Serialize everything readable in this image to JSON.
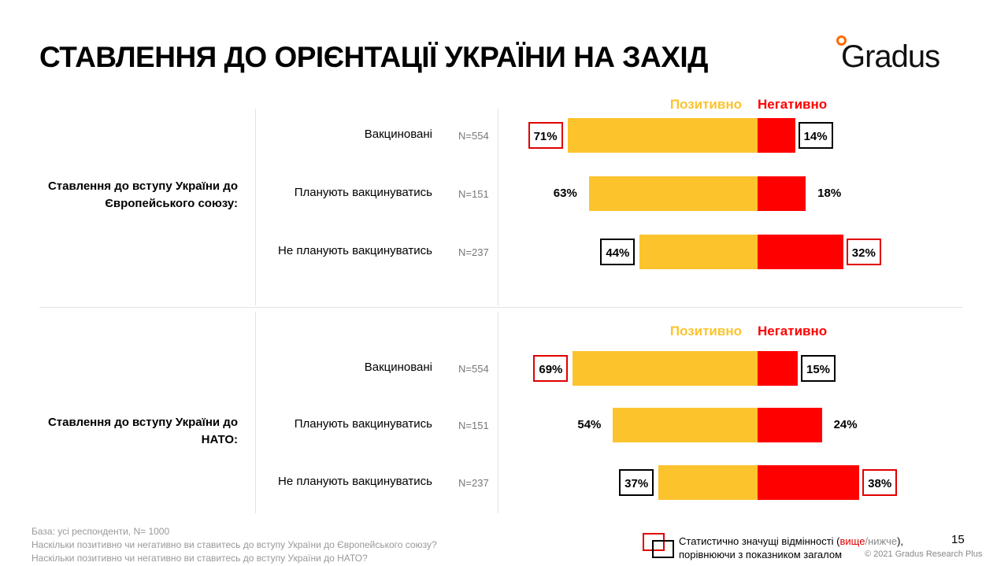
{
  "title": "СТАВЛЕННЯ ДО ОРІЄНТАЦІЇ УКРАЇНИ НА ЗАХІД",
  "logo": "Gradus",
  "colors": {
    "positive": "#fcc32c",
    "negative": "#ff0000",
    "higher": "#e00000",
    "lower": "#000000"
  },
  "chart_data": [
    {
      "type": "bar",
      "orientation": "horizontal-diverging",
      "group_label": "Ставлення до вступу України до Європейського союзу:",
      "categories": [
        "Вакциновані",
        "Планують вакцинуватись",
        "Не планують вакцинуватись"
      ],
      "n": [
        "N=554",
        "N=151",
        "N=237"
      ],
      "series": [
        {
          "name": "Позитивно",
          "values": [
            71,
            63,
            44
          ],
          "labels": [
            "71%",
            "63%",
            "44%"
          ],
          "significance": [
            "higher",
            "none",
            "lower"
          ]
        },
        {
          "name": "Негативно",
          "values": [
            14,
            18,
            32
          ],
          "labels": [
            "14%",
            "18%",
            "32%"
          ],
          "significance": [
            "lower",
            "none",
            "higher"
          ]
        }
      ]
    },
    {
      "type": "bar",
      "orientation": "horizontal-diverging",
      "group_label": "Ставлення до вступу України до НАТО:",
      "categories": [
        "Вакциновані",
        "Планують вакцинуватись",
        "Не планують вакцинуватись"
      ],
      "n": [
        "N=554",
        "N=151",
        "N=237"
      ],
      "series": [
        {
          "name": "Позитивно",
          "values": [
            69,
            54,
            37
          ],
          "labels": [
            "69%",
            "54%",
            "37%"
          ],
          "significance": [
            "higher",
            "none",
            "lower"
          ]
        },
        {
          "name": "Негативно",
          "values": [
            15,
            24,
            38
          ],
          "labels": [
            "15%",
            "24%",
            "38%"
          ],
          "significance": [
            "lower",
            "none",
            "higher"
          ]
        }
      ]
    }
  ],
  "footer": {
    "base": "База: усі респонденти, N= 1000",
    "q1": "Наскільки позитивно чи негативно ви ставитесь до вступу України до Європейського союзу?",
    "q2": "Наскільки позитивно чи негативно ви ставитесь до вступу України до НАТО?"
  },
  "legend": {
    "line1_a": "Статистично значущі відмінності (",
    "higher": "вище",
    "slash": "/",
    "lower": "нижче",
    "line1_b": "),",
    "line2": "порівнюючи з показником загалом"
  },
  "page_number": "15",
  "copyright": "© 2021 Gradus Research Plus"
}
